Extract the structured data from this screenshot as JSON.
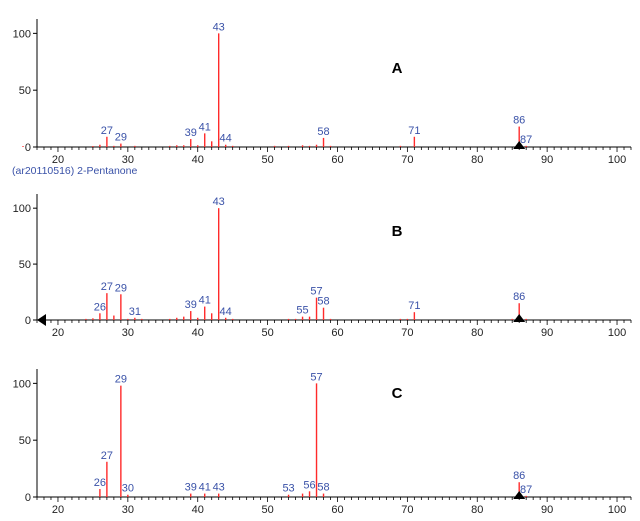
{
  "header_label": "(ar20110516) 2-Pentanone",
  "colors": {
    "bar": "#ff2a2a",
    "label": "#3a52a8",
    "axis": "#000000",
    "marker": "#000000"
  },
  "chart_data": [
    {
      "type": "bar",
      "panel_letter": "A",
      "xlim": [
        17,
        102
      ],
      "ylim": [
        0,
        110
      ],
      "xticks": [
        20,
        30,
        40,
        50,
        60,
        70,
        80,
        90,
        100
      ],
      "yticks": [
        0,
        50,
        100
      ],
      "peaks": [
        {
          "x": 15,
          "y": 0.8
        },
        {
          "x": 25,
          "y": 0.8
        },
        {
          "x": 26,
          "y": 2
        },
        {
          "x": 27,
          "y": 9,
          "label": "27"
        },
        {
          "x": 28,
          "y": 1
        },
        {
          "x": 29,
          "y": 3,
          "label": "29"
        },
        {
          "x": 31,
          "y": 1
        },
        {
          "x": 36,
          "y": 1
        },
        {
          "x": 37,
          "y": 1.5
        },
        {
          "x": 38,
          "y": 1.5
        },
        {
          "x": 39,
          "y": 7,
          "label": "39"
        },
        {
          "x": 40,
          "y": 1.5
        },
        {
          "x": 41,
          "y": 12,
          "label": "41"
        },
        {
          "x": 42,
          "y": 5
        },
        {
          "x": 43,
          "y": 100,
          "label": "43"
        },
        {
          "x": 44,
          "y": 2,
          "label": "44"
        },
        {
          "x": 45,
          "y": 1
        },
        {
          "x": 51,
          "y": 1
        },
        {
          "x": 53,
          "y": 1
        },
        {
          "x": 55,
          "y": 1.5
        },
        {
          "x": 56,
          "y": 1
        },
        {
          "x": 57,
          "y": 2
        },
        {
          "x": 58,
          "y": 8,
          "label": "58"
        },
        {
          "x": 59,
          "y": 1
        },
        {
          "x": 69,
          "y": 1
        },
        {
          "x": 71,
          "y": 9,
          "label": "71"
        },
        {
          "x": 86,
          "y": 18,
          "label": "86"
        },
        {
          "x": 87,
          "y": 1,
          "label": "87"
        }
      ],
      "marker_x": 86
    },
    {
      "type": "bar",
      "panel_letter": "B",
      "xlim": [
        17,
        102
      ],
      "ylim": [
        0,
        110
      ],
      "xticks": [
        20,
        30,
        40,
        50,
        60,
        70,
        80,
        90,
        100
      ],
      "yticks": [
        0,
        50,
        100
      ],
      "peaks": [
        {
          "x": 24,
          "y": 1
        },
        {
          "x": 25,
          "y": 1.5
        },
        {
          "x": 26,
          "y": 6,
          "label": "26"
        },
        {
          "x": 27,
          "y": 24,
          "label": "27"
        },
        {
          "x": 28,
          "y": 4
        },
        {
          "x": 29,
          "y": 23,
          "label": "29"
        },
        {
          "x": 30,
          "y": 1
        },
        {
          "x": 31,
          "y": 2,
          "label": "31"
        },
        {
          "x": 32,
          "y": 1
        },
        {
          "x": 36,
          "y": 1
        },
        {
          "x": 37,
          "y": 2
        },
        {
          "x": 38,
          "y": 3
        },
        {
          "x": 39,
          "y": 8,
          "label": "39"
        },
        {
          "x": 40,
          "y": 2
        },
        {
          "x": 41,
          "y": 12,
          "label": "41"
        },
        {
          "x": 42,
          "y": 6
        },
        {
          "x": 43,
          "y": 100,
          "label": "43"
        },
        {
          "x": 44,
          "y": 2,
          "label": "44"
        },
        {
          "x": 45,
          "y": 1
        },
        {
          "x": 53,
          "y": 1
        },
        {
          "x": 54,
          "y": 1
        },
        {
          "x": 55,
          "y": 3,
          "label": "55"
        },
        {
          "x": 56,
          "y": 3
        },
        {
          "x": 57,
          "y": 20,
          "label": "57"
        },
        {
          "x": 58,
          "y": 11,
          "label": "58"
        },
        {
          "x": 59,
          "y": 1
        },
        {
          "x": 69,
          "y": 1
        },
        {
          "x": 70,
          "y": 1
        },
        {
          "x": 71,
          "y": 7,
          "label": "71"
        },
        {
          "x": 85,
          "y": 1
        },
        {
          "x": 86,
          "y": 15,
          "label": "86"
        },
        {
          "x": 87,
          "y": 1
        }
      ],
      "marker_x": 86,
      "left_marker_x": 18
    },
    {
      "type": "bar",
      "panel_letter": "C",
      "xlim": [
        17,
        102
      ],
      "ylim": [
        0,
        110
      ],
      "xticks": [
        20,
        30,
        40,
        50,
        60,
        70,
        80,
        90,
        100
      ],
      "yticks": [
        0,
        50,
        100
      ],
      "peaks": [
        {
          "x": 26,
          "y": 7,
          "label": "26"
        },
        {
          "x": 27,
          "y": 31,
          "label": "27"
        },
        {
          "x": 29,
          "y": 98,
          "label": "29"
        },
        {
          "x": 30,
          "y": 2,
          "label": "30"
        },
        {
          "x": 39,
          "y": 3,
          "label": "39"
        },
        {
          "x": 41,
          "y": 3,
          "label": "41"
        },
        {
          "x": 43,
          "y": 3,
          "label": "43"
        },
        {
          "x": 53,
          "y": 2,
          "label": "53"
        },
        {
          "x": 55,
          "y": 3
        },
        {
          "x": 56,
          "y": 5,
          "label": "56"
        },
        {
          "x": 57,
          "y": 100,
          "label": "57"
        },
        {
          "x": 58,
          "y": 3,
          "label": "58"
        },
        {
          "x": 86,
          "y": 13,
          "label": "86"
        },
        {
          "x": 87,
          "y": 1,
          "label": "87"
        }
      ],
      "marker_x": 86
    }
  ]
}
